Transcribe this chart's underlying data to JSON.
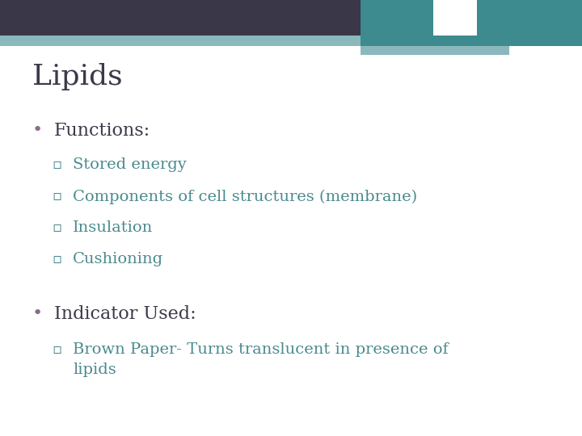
{
  "title": "Lipids",
  "title_color": "#3a3a4a",
  "title_fontsize": 26,
  "title_font": "serif",
  "background_color": "#ffffff",
  "header_dark_color": "#3a3848",
  "header_teal_color": "#3d8a8f",
  "header_light_teal": "#8ab8bc",
  "bullet1_text": "Functions:",
  "bullet1_dot_color": "#8b6b8b",
  "bullet1_fontsize": 16,
  "sub_bullet_color": "#4a8a8f",
  "sub_bullet_fontsize": 14,
  "sub_bullets": [
    "Stored energy",
    "Components of cell structures (membrane)",
    "Insulation",
    "Cushioning"
  ],
  "bullet2_text": "Indicator Used:",
  "bullet2_fontsize": 16,
  "sub_bullet2": "Brown Paper- Turns translucent in presence of\nlipids",
  "sub_bullet2_color": "#4a8a8f",
  "sub_bullet2_fontsize": 14
}
